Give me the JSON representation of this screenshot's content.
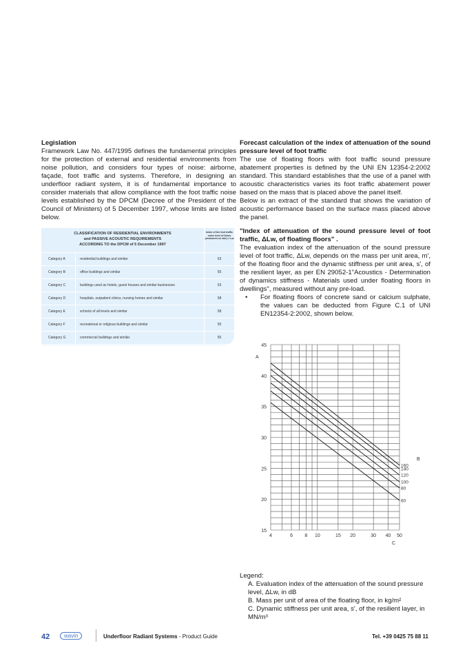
{
  "left": {
    "title": "Legislation",
    "body": "Framework Law No. 447/1995 defines the fundamental principles for the protection of external and residential environments from noise pollution, and considers four types of noise: airborne, façade, foot traffic and systems. Therefore, in designing an underfloor radiant system, it is of fundamental importance to consider materials that allow compliance with the foot traffic noise levels established by the DPCM (Decree of the President of the Council of Ministers) of 5 December 1997, whose limits are listed below."
  },
  "table": {
    "title_lines": [
      "CLASSIFICATION OF RESIDENTIAL ENVIRONMENTS",
      "and PASSIVE ACOUSTIC REQUIREMENTS",
      "ACCORDING TO the DPCM of 5 December 1997"
    ],
    "index_header": "Index of the foot traffic noise level of floors (measured on site) L'n,w",
    "rows": [
      {
        "category": "Category A",
        "description": "residential buildings and similar",
        "value": "63"
      },
      {
        "category": "Category B",
        "description": "office buildings and similar",
        "value": "55"
      },
      {
        "category": "Category C",
        "description": "buildings used as hotels, guest houses and similar businesses",
        "value": "63"
      },
      {
        "category": "Category D",
        "description": "hospitals, outpatient clinics, nursing homes and similar",
        "value": "58"
      },
      {
        "category": "Category E",
        "description": "schools of all levels and similar",
        "value": "58"
      },
      {
        "category": "Category F",
        "description": "recreational or religious buildings and similar",
        "value": "55"
      },
      {
        "category": "Category G",
        "description": "commercial buildings and similar",
        "value": "55"
      }
    ]
  },
  "right": {
    "title": "Forecast calculation of the index of attenuation of the sound pressure level of foot traffic",
    "body1": "The use of floating floors with foot traffic sound pressure abatement properties is defined by the UNI EN 12354-2:2002 standard. This standard establishes that the use of a panel with acoustic characteristics varies its foot traffic abatement power based on the mass that is placed above the panel itself.",
    "body2": "Below is an extract of the standard that shows the variation of acoustic performance based on the surface mass placed above the panel.",
    "title2": "\"Index of attenuation of the sound pressure level of foot traffic, ΔLw, of floating floors\" .",
    "body3": "The evaluation index of the attenuation of the sound pressure level of foot traffic, ΔLw, depends on the mass per unit area, m', of the floating floor and the dynamic stiffness per unit area, s', of the resilient layer, as per EN 29052-1\"Acoustics - Determination of dynamics stiffness - Materials used under floating floors in dwellings\", measured without any pre-load.",
    "bullet": "For floating floors of concrete sand or calcium sulphate, the values can be deducted from Figure  C.1 of UNI EN12354-2:2002, shown below."
  },
  "chart_data": {
    "type": "line",
    "xlabel": "C",
    "ylabel": "A",
    "legend_title": "B",
    "x_scale": "log",
    "xlim": [
      4,
      50
    ],
    "ylim": [
      15,
      45
    ],
    "x_ticks": [
      "4",
      "6",
      "8",
      "10",
      "15",
      "20",
      "30",
      "40",
      "50"
    ],
    "y_ticks": [
      "15",
      "20",
      "25",
      "30",
      "35",
      "40",
      "45"
    ],
    "grid": true,
    "series": [
      {
        "name": "160",
        "x": [
          4,
          50
        ],
        "y": [
          42,
          25.5
        ]
      },
      {
        "name": "140",
        "x": [
          4,
          50
        ],
        "y": [
          41,
          24.9
        ]
      },
      {
        "name": "120",
        "x": [
          4,
          50
        ],
        "y": [
          40,
          23.9
        ]
      },
      {
        "name": "100",
        "x": [
          4,
          50
        ],
        "y": [
          38.8,
          22.8
        ]
      },
      {
        "name": "80",
        "x": [
          4,
          50
        ],
        "y": [
          37.5,
          21.8
        ]
      },
      {
        "name": "60",
        "x": [
          4,
          50
        ],
        "y": [
          35.6,
          19.8
        ]
      }
    ]
  },
  "legend": {
    "title": "Legend:",
    "a": "A. Evaluation index of the attenuation of the sound pressure level, ΔLw, in dB",
    "b": "B. Mass per unit of area of the floating floor, in kg/m²",
    "c": "C. Dynamic stiffness per unit area, s', of the resilient layer, in MN/m³"
  },
  "footer": {
    "page": "42",
    "logo": "wavin",
    "title_bold": "Underfloor Radiant Systems",
    "title_rest": " - Product Guide",
    "tel": "Tel. +39 0425 75 88 11"
  }
}
